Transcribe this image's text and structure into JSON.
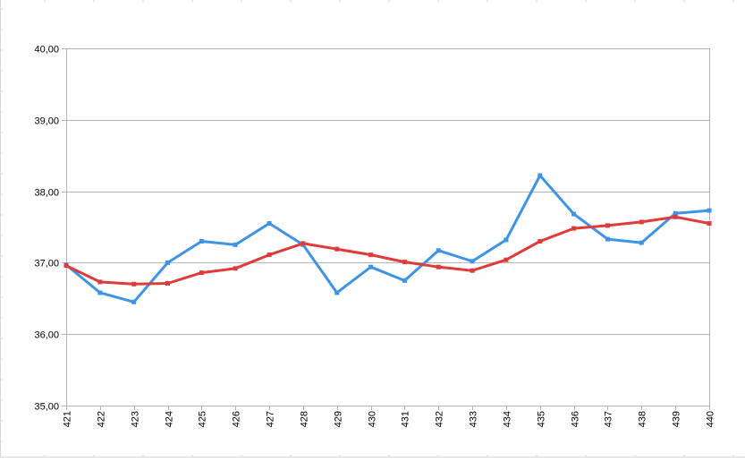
{
  "chart_data": {
    "type": "line",
    "title": "",
    "xlabel": "",
    "ylabel": "",
    "categories": [
      "421",
      "422",
      "423",
      "424",
      "425",
      "426",
      "427",
      "428",
      "429",
      "430",
      "431",
      "432",
      "433",
      "434",
      "435",
      "436",
      "437",
      "438",
      "439",
      "440"
    ],
    "ylim": [
      35,
      40
    ],
    "yticks": [
      "35,00",
      "36,00",
      "37,00",
      "38,00",
      "39,00",
      "40,00"
    ],
    "grid": true,
    "legend": "none",
    "series": [
      {
        "color": "#3d94e6",
        "values": [
          36.97,
          36.58,
          36.45,
          37.0,
          37.3,
          37.25,
          37.55,
          37.25,
          36.58,
          36.94,
          36.75,
          37.17,
          37.02,
          37.32,
          38.22,
          37.68,
          37.33,
          37.28,
          37.69,
          37.73
        ]
      },
      {
        "color": "#e03a3a",
        "values": [
          36.96,
          36.73,
          36.7,
          36.71,
          36.86,
          36.92,
          37.11,
          37.27,
          37.19,
          37.11,
          37.01,
          36.94,
          36.89,
          37.04,
          37.3,
          37.48,
          37.52,
          37.57,
          37.64,
          37.55
        ]
      }
    ]
  }
}
